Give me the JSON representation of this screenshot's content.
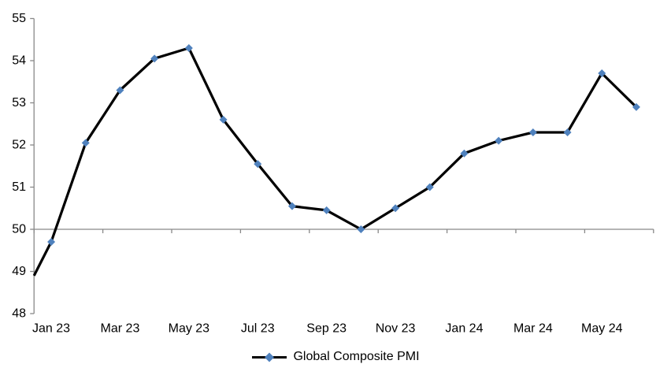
{
  "chart_data": {
    "type": "line",
    "title": "",
    "categories": [
      "Jan 23",
      "Feb 23",
      "Mar 23",
      "Apr 23",
      "May 23",
      "Jun 23",
      "Jul 23",
      "Aug 23",
      "Sep 23",
      "Oct 23",
      "Nov 23",
      "Dec 23",
      "Jan 24",
      "Feb 24",
      "Mar 24",
      "Apr 24",
      "May 24",
      "Jun 24"
    ],
    "x_axis_tick_labels": [
      "Jan 23",
      "Mar 23",
      "May 23",
      "Jul 23",
      "Sep 23",
      "Nov 23",
      "Jan 24",
      "Mar 24",
      "May 24"
    ],
    "series": [
      {
        "name": "Global Composite PMI",
        "values": [
          49.7,
          52.05,
          53.3,
          54.05,
          54.3,
          52.6,
          51.55,
          50.55,
          50.45,
          50.0,
          50.5,
          51.0,
          51.8,
          52.1,
          52.3,
          52.3,
          53.7,
          52.9
        ],
        "edge_start_value": 48.9,
        "line_color": "#000000",
        "marker_shape": "diamond",
        "marker_color": "#4F81BD"
      }
    ],
    "ylim": [
      48,
      55
    ],
    "y_ticks": [
      48,
      49,
      50,
      51,
      52,
      53,
      54,
      55
    ],
    "x_axis_cross_value": 50,
    "x_tick_interval_categories": 2,
    "grid": false,
    "legend_position": "bottom-center",
    "axis_color": "#898989",
    "label_color": "#000000",
    "background_color": "#FFFFFF"
  }
}
